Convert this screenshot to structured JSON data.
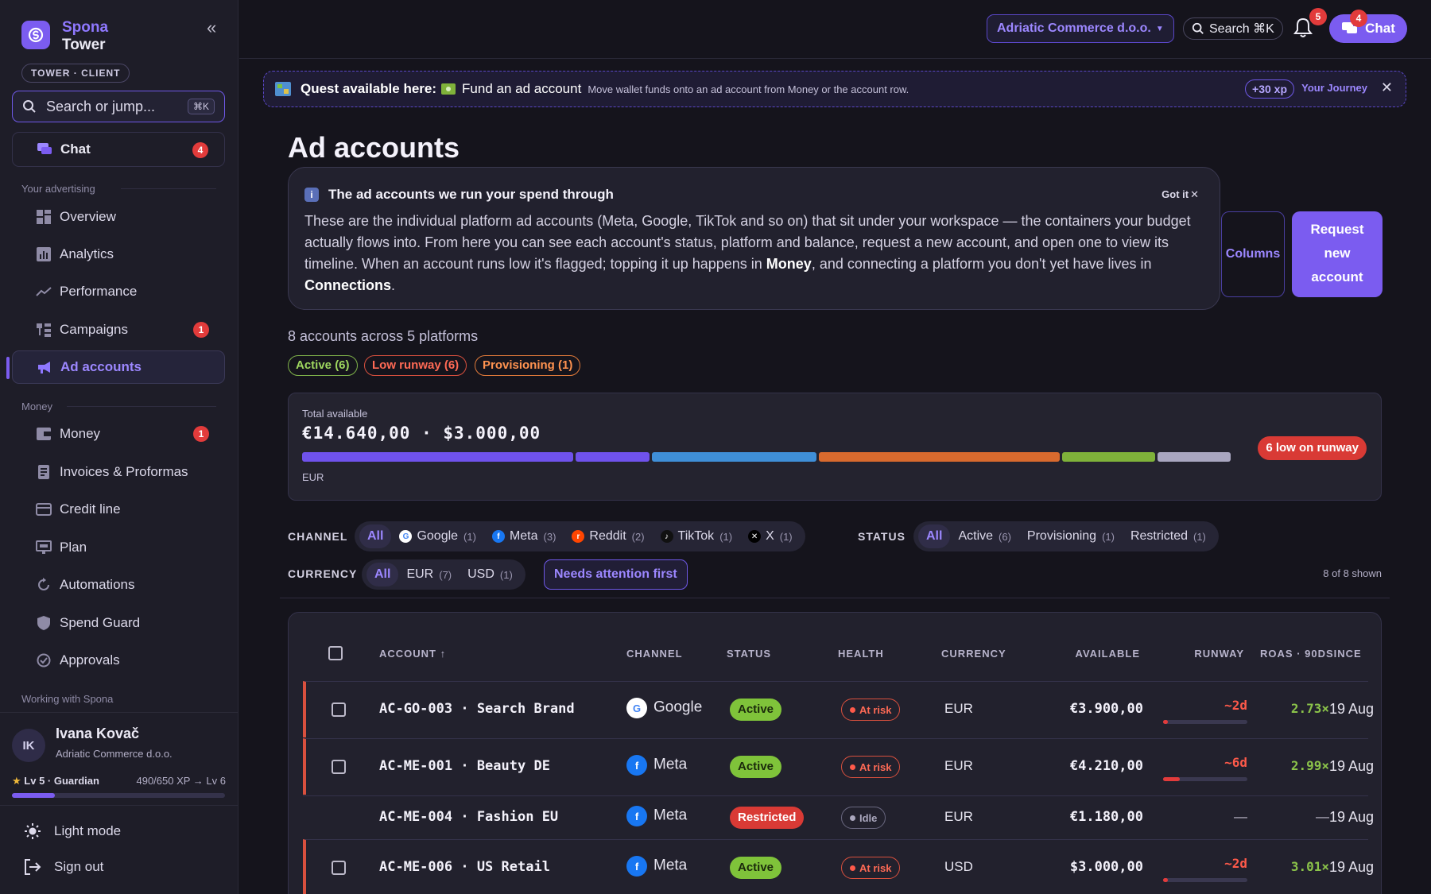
{
  "sidebar": {
    "brand_line1": "Spona",
    "brand_line2": "Tower",
    "role": "TOWER · CLIENT",
    "search_placeholder": "Search or jump...",
    "search_kbd": "⌘K",
    "chat": {
      "label": "Chat",
      "badge": "4"
    },
    "section_advertising": "Your advertising",
    "advertising_items": [
      {
        "label": "Overview",
        "icon": "grid-icon"
      },
      {
        "label": "Analytics",
        "icon": "bar-chart-icon"
      },
      {
        "label": "Performance",
        "icon": "trend-icon"
      },
      {
        "label": "Campaigns",
        "icon": "hierarchy-icon",
        "badge": "1"
      },
      {
        "label": "Ad accounts",
        "icon": "megaphone-icon",
        "active": true
      }
    ],
    "section_money": "Money",
    "money_items": [
      {
        "label": "Money",
        "icon": "wallet-icon",
        "badge": "1"
      },
      {
        "label": "Invoices & Proformas",
        "icon": "invoice-icon"
      },
      {
        "label": "Credit line",
        "icon": "card-icon"
      },
      {
        "label": "Plan",
        "icon": "monitor-icon"
      },
      {
        "label": "Automations",
        "icon": "refresh-icon"
      },
      {
        "label": "Spend Guard",
        "icon": "shield-icon"
      },
      {
        "label": "Approvals",
        "icon": "check-circle-icon"
      }
    ],
    "section_working": "Working with Spona",
    "user": {
      "initials": "IK",
      "name": "Ivana Kovač",
      "company": "Adriatic Commerce d.o.o.",
      "level": "Lv 5 · Guardian",
      "xp": "490/650 XP → Lv 6",
      "xp_progress": 0.2
    },
    "light_mode": "Light mode",
    "sign_out": "Sign out"
  },
  "topbar": {
    "workspace": "Adriatic Commerce d.o.o.",
    "search": "Search ⌘K",
    "notif_badge": "5",
    "chat_label": "Chat",
    "chat_badge": "4"
  },
  "quest": {
    "title": "Quest available here:",
    "task": "Fund an ad account",
    "desc": "Move wallet funds onto an ad account from Money or the account row.",
    "xp": "+30 xp",
    "journey": "Your Journey"
  },
  "page": {
    "title": "Ad accounts",
    "info_title": "The ad accounts we run your spend through",
    "info_body_1": "These are the individual platform ad accounts (Meta, Google, TikTok and so on) that sit under your workspace — the containers your budget actually flows into. From here you can see each account's status, platform and balance, request a new account, and open one to view its timeline. When an account runs low it's flagged; topping it up happens in ",
    "info_bold_1": "Money",
    "info_body_2": ", and connecting a platform you don't yet have lives in ",
    "info_bold_2": "Connections",
    "info_body_3": ".",
    "got_it": "Got it",
    "columns_btn": "Columns",
    "request_line1": "Request",
    "request_line2": "new",
    "request_line3": "account",
    "summary": "8 accounts across 5 platforms",
    "chips": {
      "active": "Active (6)",
      "low": "Low runway (6)",
      "provisioning": "Provisioning (1)"
    }
  },
  "balance": {
    "label": "Total available",
    "value": "€14.640,00 · $3.000,00",
    "currency": "EUR",
    "low_badge": "6 low on runway",
    "segments": [
      {
        "color": "#6f52ec",
        "share": 26.6
      },
      {
        "color": "#6f52ec",
        "share": 7.3
      },
      {
        "color": "#3f8fd8",
        "share": 16.1
      },
      {
        "color": "#d86a2e",
        "share": 23.7
      },
      {
        "color": "#7fb23a",
        "share": 9.1
      },
      {
        "color": "#a9a6c0",
        "share": 7.2
      }
    ]
  },
  "filters": {
    "channel_label": "CHANNEL",
    "channel": [
      {
        "label": "All",
        "selected": true
      },
      {
        "label": "Google",
        "count": "(1)",
        "icon": "google-icon"
      },
      {
        "label": "Meta",
        "count": "(3)",
        "icon": "meta-icon"
      },
      {
        "label": "Reddit",
        "count": "(2)",
        "icon": "reddit-icon"
      },
      {
        "label": "TikTok",
        "count": "(1)",
        "icon": "tiktok-icon"
      },
      {
        "label": "X",
        "count": "(1)",
        "icon": "x-icon"
      }
    ],
    "status_label": "STATUS",
    "status": [
      {
        "label": "All",
        "selected": true
      },
      {
        "label": "Active",
        "count": "(6)"
      },
      {
        "label": "Provisioning",
        "count": "(1)"
      },
      {
        "label": "Restricted",
        "count": "(1)"
      }
    ],
    "currency_label": "CURRENCY",
    "currency": [
      {
        "label": "All",
        "selected": true
      },
      {
        "label": "EUR",
        "count": "(7)"
      },
      {
        "label": "USD",
        "count": "(1)"
      }
    ],
    "needs_attention": "Needs attention first",
    "shown": "8 of 8 shown"
  },
  "table": {
    "headers": {
      "account": "ACCOUNT ↑",
      "channel": "CHANNEL",
      "status": "STATUS",
      "health": "HEALTH",
      "currency": "CURRENCY",
      "available": "AVAILABLE",
      "runway": "RUNWAY",
      "roas": "ROAS · 90D",
      "since": "SINCE"
    },
    "rows": [
      {
        "account": "AC-GO-003 · Search Brand",
        "channel": "Google",
        "status": "Active",
        "health": "At risk",
        "currency": "EUR",
        "available": "€3.900,00",
        "runway": "~2d",
        "runway_level": 0.06,
        "roas": "2.73×",
        "since": "19 Aug"
      },
      {
        "account": "AC-ME-001 · Beauty DE",
        "channel": "Meta",
        "status": "Active",
        "health": "At risk",
        "currency": "EUR",
        "available": "€4.210,00",
        "runway": "~6d",
        "runway_level": 0.2,
        "roas": "2.99×",
        "since": "19 Aug"
      },
      {
        "account": "AC-ME-004 · Fashion EU",
        "channel": "Meta",
        "status": "Restricted",
        "health": "Idle",
        "currency": "EUR",
        "available": "€1.180,00",
        "runway": "—",
        "roas": "—",
        "since": "19 Aug"
      },
      {
        "account": "AC-ME-006 · US Retail",
        "channel": "Meta",
        "status": "Active",
        "health": "At risk",
        "currency": "USD",
        "available": "$3.000,00",
        "runway": "~2d",
        "runway_level": 0.06,
        "roas": "3.01×",
        "since": "19 Aug"
      }
    ]
  }
}
